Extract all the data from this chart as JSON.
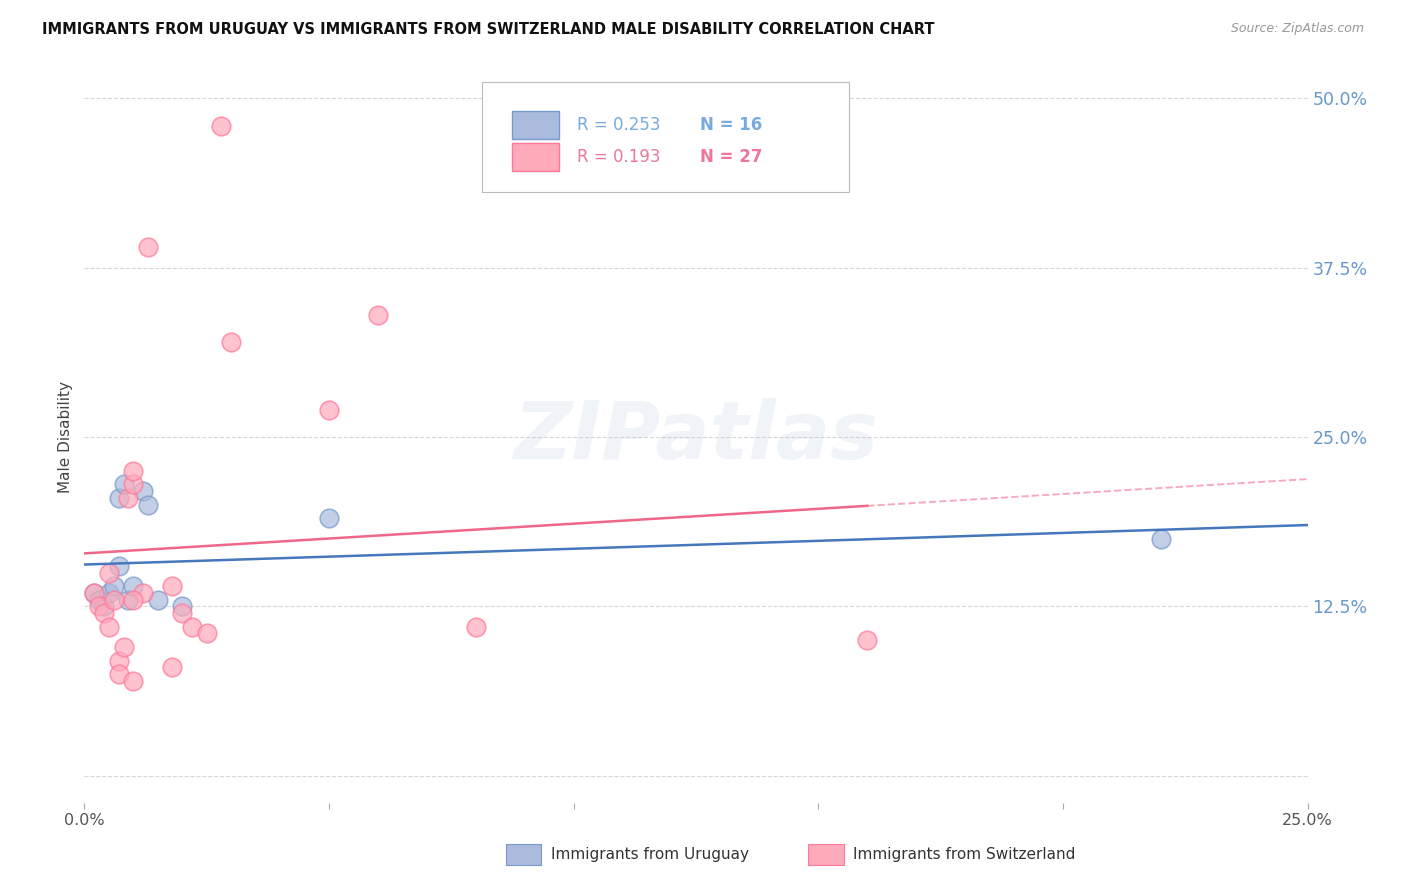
{
  "title": "IMMIGRANTS FROM URUGUAY VS IMMIGRANTS FROM SWITZERLAND MALE DISABILITY CORRELATION CHART",
  "source": "Source: ZipAtlas.com",
  "ylabel": "Male Disability",
  "legend_label_blue": "Immigrants from Uruguay",
  "legend_label_pink": "Immigrants from Switzerland",
  "R_blue": 0.253,
  "N_blue": 16,
  "R_pink": 0.193,
  "N_pink": 27,
  "xlim": [
    0.0,
    0.25
  ],
  "ylim": [
    -0.02,
    0.52
  ],
  "yticks": [
    0.0,
    0.125,
    0.25,
    0.375,
    0.5
  ],
  "ytick_labels": [
    "",
    "12.5%",
    "25.0%",
    "37.5%",
    "50.0%"
  ],
  "xticks": [
    0.0,
    0.05,
    0.1,
    0.15,
    0.2,
    0.25
  ],
  "xtick_labels": [
    "0.0%",
    "",
    "",
    "",
    "",
    "25.0%"
  ],
  "blue_fill": "#AABBDD",
  "blue_edge": "#7799CC",
  "pink_fill": "#FFAABB",
  "pink_edge": "#FF7799",
  "blue_line_color": "#4477BB",
  "pink_line_color": "#EE6688",
  "watermark": "ZIPatlas",
  "background_color": "#FFFFFF",
  "grid_color": "#CCCCCC",
  "blue_x": [
    0.002,
    0.003,
    0.004,
    0.005,
    0.006,
    0.007,
    0.007,
    0.008,
    0.009,
    0.01,
    0.012,
    0.013,
    0.015,
    0.02,
    0.05,
    0.22
  ],
  "blue_y": [
    0.135,
    0.13,
    0.125,
    0.135,
    0.14,
    0.155,
    0.205,
    0.215,
    0.13,
    0.14,
    0.21,
    0.2,
    0.13,
    0.125,
    0.19,
    0.175
  ],
  "pink_x": [
    0.002,
    0.003,
    0.004,
    0.005,
    0.006,
    0.007,
    0.007,
    0.008,
    0.009,
    0.01,
    0.01,
    0.012,
    0.013,
    0.018,
    0.02,
    0.022,
    0.025,
    0.028,
    0.03,
    0.05,
    0.06,
    0.08,
    0.16,
    0.018,
    0.01,
    0.01,
    0.005
  ],
  "pink_y": [
    0.135,
    0.125,
    0.12,
    0.11,
    0.13,
    0.085,
    0.075,
    0.095,
    0.205,
    0.215,
    0.225,
    0.135,
    0.39,
    0.14,
    0.12,
    0.11,
    0.105,
    0.48,
    0.32,
    0.27,
    0.34,
    0.11,
    0.1,
    0.08,
    0.07,
    0.13,
    0.15
  ]
}
